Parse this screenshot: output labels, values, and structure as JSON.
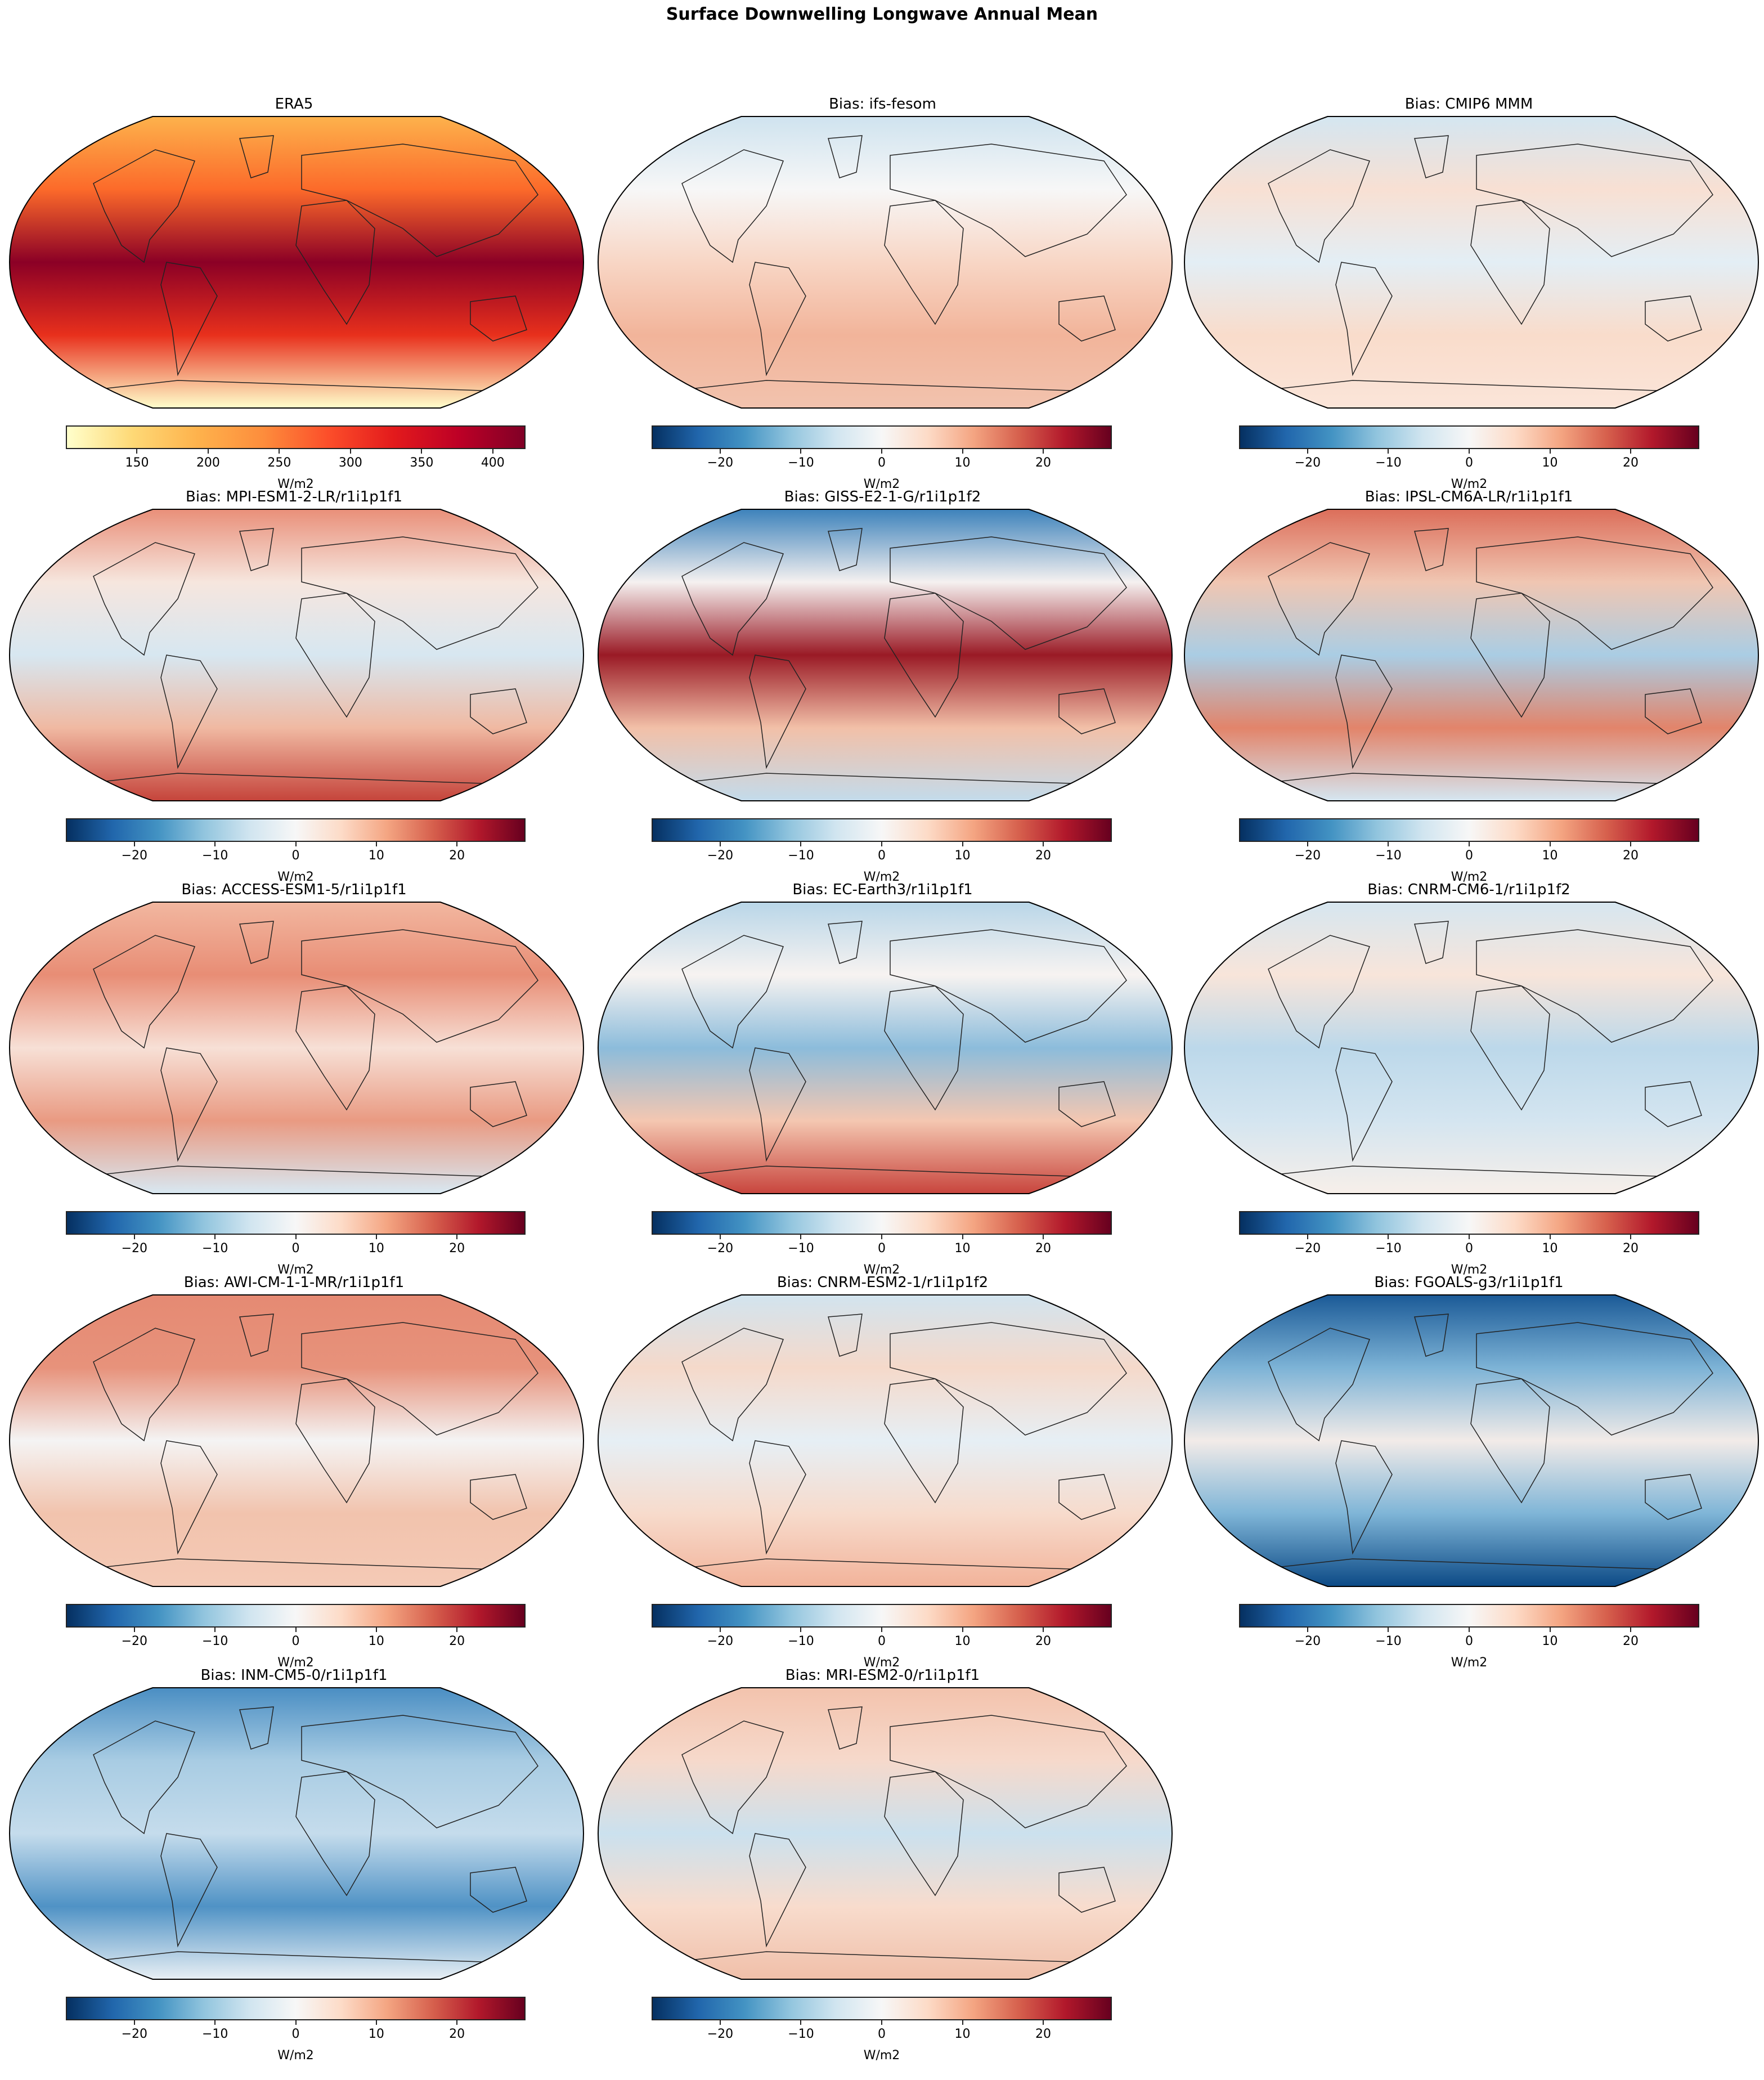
{
  "figure": {
    "title": "Surface Downwelling Longwave Annual Mean"
  },
  "chart_data": [
    {
      "type": "heatmap",
      "title": "ERA5",
      "colormap": "YlOrRd",
      "colorbar": {
        "label": "W/m2",
        "range": [
          100,
          423
        ],
        "ticks": [
          150,
          200,
          250,
          300,
          350,
          400
        ],
        "tick_labels": [
          "150",
          "200",
          "250",
          "300",
          "350",
          "400"
        ]
      }
    },
    {
      "type": "heatmap",
      "title": "Bias: ifs-fesom",
      "colormap": "RdBu_r",
      "colorbar": {
        "label": "W/m2",
        "range": [
          -28.5,
          28.5
        ],
        "ticks": [
          -20,
          -10,
          0,
          10,
          20
        ],
        "tick_labels": [
          "−20",
          "−10",
          "0",
          "10",
          "20"
        ]
      }
    },
    {
      "type": "heatmap",
      "title": "Bias: CMIP6 MMM",
      "colormap": "RdBu_r",
      "colorbar": {
        "label": "W/m2",
        "range": [
          -28.5,
          28.5
        ],
        "ticks": [
          -20,
          -10,
          0,
          10,
          20
        ],
        "tick_labels": [
          "−20",
          "−10",
          "0",
          "10",
          "20"
        ]
      }
    },
    {
      "type": "heatmap",
      "title": "Bias: MPI-ESM1-2-LR/r1i1p1f1",
      "colormap": "RdBu_r",
      "colorbar": {
        "label": "W/m2",
        "range": [
          -28.5,
          28.5
        ],
        "ticks": [
          -20,
          -10,
          0,
          10,
          20
        ],
        "tick_labels": [
          "−20",
          "−10",
          "0",
          "10",
          "20"
        ]
      }
    },
    {
      "type": "heatmap",
      "title": "Bias: GISS-E2-1-G/r1i1p1f2",
      "colormap": "RdBu_r",
      "colorbar": {
        "label": "W/m2",
        "range": [
          -28.5,
          28.5
        ],
        "ticks": [
          -20,
          -10,
          0,
          10,
          20
        ],
        "tick_labels": [
          "−20",
          "−10",
          "0",
          "10",
          "20"
        ]
      }
    },
    {
      "type": "heatmap",
      "title": "Bias: IPSL-CM6A-LR/r1i1p1f1",
      "colormap": "RdBu_r",
      "colorbar": {
        "label": "W/m2",
        "range": [
          -28.5,
          28.5
        ],
        "ticks": [
          -20,
          -10,
          0,
          10,
          20
        ],
        "tick_labels": [
          "−20",
          "−10",
          "0",
          "10",
          "20"
        ]
      }
    },
    {
      "type": "heatmap",
      "title": "Bias: ACCESS-ESM1-5/r1i1p1f1",
      "colormap": "RdBu_r",
      "colorbar": {
        "label": "W/m2",
        "range": [
          -28.5,
          28.5
        ],
        "ticks": [
          -20,
          -10,
          0,
          10,
          20
        ],
        "tick_labels": [
          "−20",
          "−10",
          "0",
          "10",
          "20"
        ]
      }
    },
    {
      "type": "heatmap",
      "title": "Bias: EC-Earth3/r1i1p1f1",
      "colormap": "RdBu_r",
      "colorbar": {
        "label": "W/m2",
        "range": [
          -28.5,
          28.5
        ],
        "ticks": [
          -20,
          -10,
          0,
          10,
          20
        ],
        "tick_labels": [
          "−20",
          "−10",
          "0",
          "10",
          "20"
        ]
      }
    },
    {
      "type": "heatmap",
      "title": "Bias: CNRM-CM6-1/r1i1p1f2",
      "colormap": "RdBu_r",
      "colorbar": {
        "label": "W/m2",
        "range": [
          -28.5,
          28.5
        ],
        "ticks": [
          -20,
          -10,
          0,
          10,
          20
        ],
        "tick_labels": [
          "−20",
          "−10",
          "0",
          "10",
          "20"
        ]
      }
    },
    {
      "type": "heatmap",
      "title": "Bias: AWI-CM-1-1-MR/r1i1p1f1",
      "colormap": "RdBu_r",
      "colorbar": {
        "label": "W/m2",
        "range": [
          -28.5,
          28.5
        ],
        "ticks": [
          -20,
          -10,
          0,
          10,
          20
        ],
        "tick_labels": [
          "−20",
          "−10",
          "0",
          "10",
          "20"
        ]
      }
    },
    {
      "type": "heatmap",
      "title": "Bias: CNRM-ESM2-1/r1i1p1f2",
      "colormap": "RdBu_r",
      "colorbar": {
        "label": "W/m2",
        "range": [
          -28.5,
          28.5
        ],
        "ticks": [
          -20,
          -10,
          0,
          10,
          20
        ],
        "tick_labels": [
          "−20",
          "−10",
          "0",
          "10",
          "20"
        ]
      }
    },
    {
      "type": "heatmap",
      "title": "Bias: FGOALS-g3/r1i1p1f1",
      "colormap": "RdBu_r",
      "colorbar": {
        "label": "W/m2",
        "range": [
          -28.5,
          28.5
        ],
        "ticks": [
          -20,
          -10,
          0,
          10,
          20
        ],
        "tick_labels": [
          "−20",
          "−10",
          "0",
          "10",
          "20"
        ]
      }
    },
    {
      "type": "heatmap",
      "title": "Bias: INM-CM5-0/r1i1p1f1",
      "colormap": "RdBu_r",
      "colorbar": {
        "label": "W/m2",
        "range": [
          -28.5,
          28.5
        ],
        "ticks": [
          -20,
          -10,
          0,
          10,
          20
        ],
        "tick_labels": [
          "−20",
          "−10",
          "0",
          "10",
          "20"
        ]
      }
    },
    {
      "type": "heatmap",
      "title": "Bias: MRI-ESM2-0/r1i1p1f1",
      "colormap": "RdBu_r",
      "colorbar": {
        "label": "W/m2",
        "range": [
          -28.5,
          28.5
        ],
        "ticks": [
          -20,
          -10,
          0,
          10,
          20
        ],
        "tick_labels": [
          "−20",
          "−10",
          "0",
          "10",
          "20"
        ]
      }
    }
  ]
}
